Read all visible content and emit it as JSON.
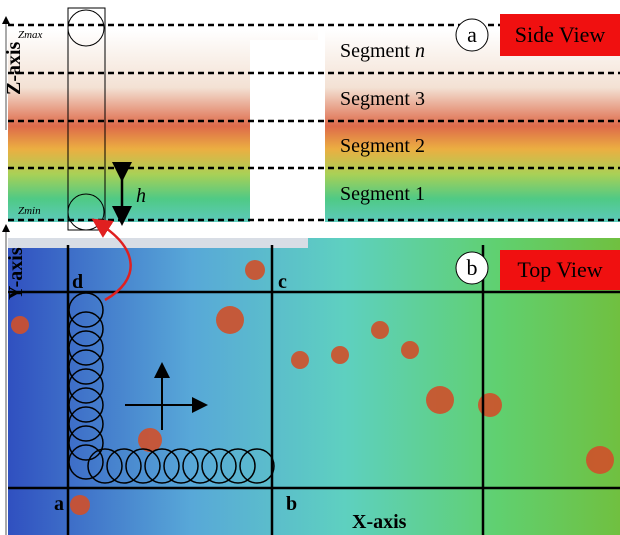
{
  "side_view": {
    "panel_label": "a",
    "title": "Side View",
    "z_axis": "Z-axis",
    "zmax": "Zmax",
    "zmin": "Zmin",
    "height_label": "h",
    "segments": [
      {
        "label": "Segment",
        "index": "n"
      },
      {
        "label": "Segment 3"
      },
      {
        "label": "Segment 2"
      },
      {
        "label": "Segment 1"
      }
    ]
  },
  "top_view": {
    "panel_label": "b",
    "title": "Top View",
    "y_axis": "Y-axis",
    "x_axis": "X-axis",
    "corners": [
      "a",
      "b",
      "c",
      "d"
    ]
  }
}
